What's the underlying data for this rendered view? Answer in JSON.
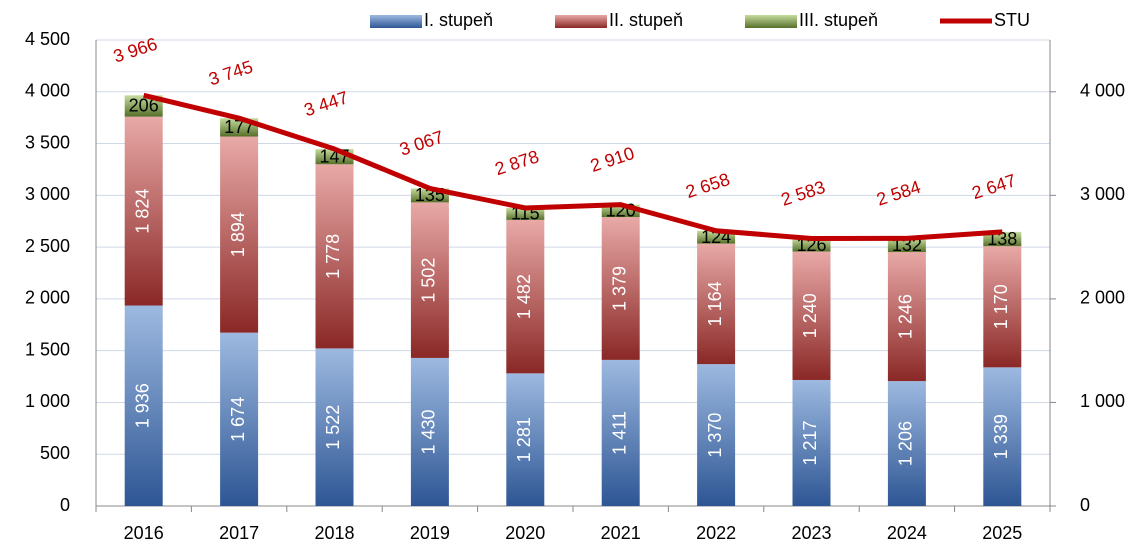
{
  "chart_data": {
    "type": "bar",
    "stacked": true,
    "categories": [
      "2016",
      "2017",
      "2018",
      "2019",
      "2020",
      "2021",
      "2022",
      "2023",
      "2024",
      "2025"
    ],
    "series": [
      {
        "name": "I. stupeň",
        "color": "#4f81bd",
        "values": [
          1936,
          1674,
          1522,
          1430,
          1281,
          1411,
          1370,
          1217,
          1206,
          1339
        ],
        "value_labels": [
          "1 936",
          "1 674",
          "1 522",
          "1 430",
          "1 281",
          "1 411",
          "1 370",
          "1 217",
          "1 206",
          "1 339"
        ]
      },
      {
        "name": "II. stupeň",
        "color": "#c0504d",
        "values": [
          1824,
          1894,
          1778,
          1502,
          1482,
          1379,
          1164,
          1240,
          1246,
          1170
        ],
        "value_labels": [
          "1 824",
          "1 894",
          "1 778",
          "1 502",
          "1 482",
          "1 379",
          "1 164",
          "1 240",
          "1 246",
          "1 170"
        ]
      },
      {
        "name": "III. stupeň",
        "color": "#9bbb59",
        "values": [
          206,
          177,
          147,
          135,
          115,
          120,
          124,
          126,
          132,
          138
        ]
      },
      {
        "name": "STU",
        "type": "line",
        "axis": "y2",
        "color": "#c00000",
        "values": [
          3966,
          3745,
          3447,
          3067,
          2878,
          2910,
          2658,
          2583,
          2584,
          2647
        ],
        "value_labels": [
          "3 966",
          "3 745",
          "3 447",
          "3 067",
          "2 878",
          "2 910",
          "2 658",
          "2 583",
          "2 584",
          "2 647"
        ]
      }
    ],
    "ylim": [
      0,
      4500
    ],
    "yticks": [
      0,
      500,
      {
        "value": 1000,
        "label": "1 000"
      },
      {
        "value": 1500,
        "label": "1 500"
      },
      {
        "value": 2000,
        "label": "2 000"
      },
      {
        "value": 2500,
        "label": "2 500"
      },
      {
        "value": 3000,
        "label": "3 000"
      },
      {
        "value": 3500,
        "label": "3 500"
      },
      {
        "value": 4000,
        "label": "4 000"
      },
      {
        "value": 4500,
        "label": "4 500"
      }
    ],
    "y2lim": [
      0,
      4500
    ],
    "y2ticks": [
      0,
      {
        "value": 1000,
        "label": "1 000"
      },
      {
        "value": 2000,
        "label": "2 000"
      },
      {
        "value": 3000,
        "label": "3 000"
      },
      {
        "value": 4000,
        "label": "4 000"
      }
    ],
    "grid": true,
    "legend": "top"
  }
}
